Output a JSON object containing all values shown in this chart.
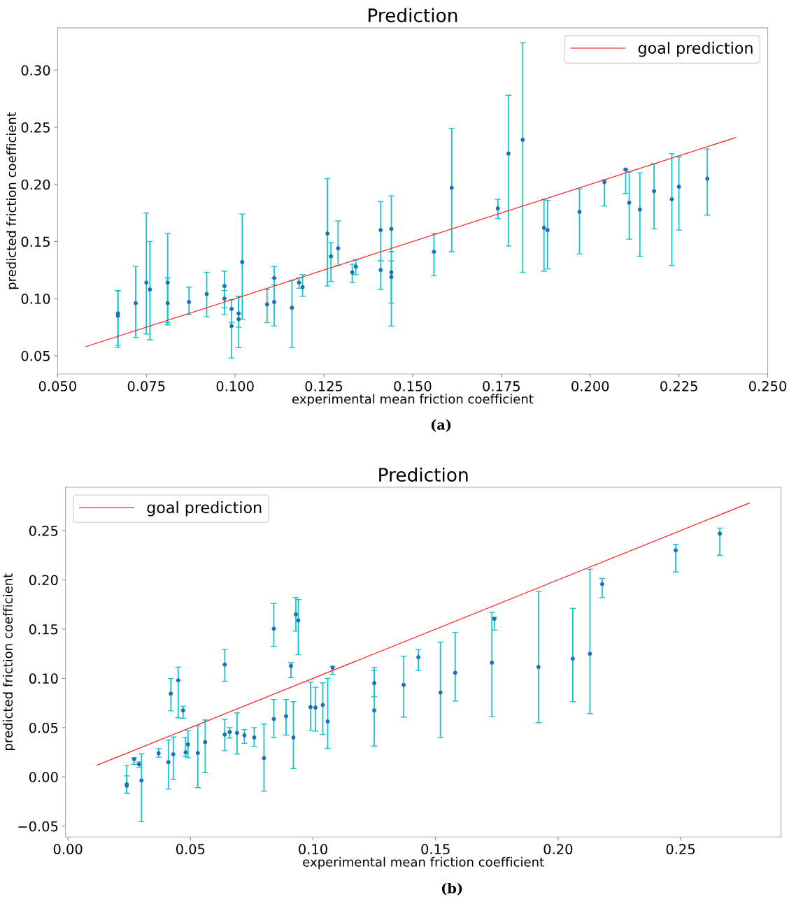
{
  "chart_data": [
    {
      "type": "scatter",
      "title": "Prediction",
      "xlabel": "experimental mean friction coefficient",
      "ylabel": "predicted friction coefficient",
      "annotations": [
        "(a)"
      ],
      "legend": "top right",
      "grid": false,
      "xlim": [
        0.05,
        0.25
      ],
      "xticks": [
        {
          "value": 0.05,
          "label": "0.050"
        },
        {
          "value": 0.075,
          "label": "0.075"
        },
        {
          "value": 0.1,
          "label": "0.100"
        },
        {
          "value": 0.125,
          "label": "0.125"
        },
        {
          "value": 0.15,
          "label": "0.150"
        },
        {
          "value": 0.175,
          "label": "0.175"
        },
        {
          "value": 0.2,
          "label": "0.200"
        },
        {
          "value": 0.225,
          "label": "0.225"
        },
        {
          "value": 0.25,
          "label": "0.250"
        }
      ],
      "ylim": [
        0.034,
        0.337
      ],
      "yticks": [
        {
          "value": 0.05,
          "label": "0.05"
        },
        {
          "value": 0.1,
          "label": "0.10"
        },
        {
          "value": 0.15,
          "label": "0.15"
        },
        {
          "value": 0.2,
          "label": "0.20"
        },
        {
          "value": 0.25,
          "label": "0.25"
        },
        {
          "value": 0.3,
          "label": "0.30"
        }
      ],
      "series": [
        {
          "type": "line",
          "name": "goal prediction",
          "color": "#ff2020",
          "x": [
            0.058,
            0.241
          ],
          "values": [
            0.058,
            0.241
          ]
        },
        {
          "color": "#1f6fb4",
          "marker": "circle",
          "x": [
            0.067,
            0.067,
            0.072,
            0.075,
            0.076,
            0.081,
            0.081,
            0.087,
            0.092,
            0.097,
            0.097,
            0.099,
            0.099,
            0.101,
            0.101,
            0.102,
            0.109,
            0.111,
            0.111,
            0.116,
            0.118,
            0.119,
            0.126,
            0.127,
            0.129,
            0.133,
            0.134,
            0.141,
            0.141,
            0.144,
            0.144,
            0.144,
            0.156,
            0.161,
            0.174,
            0.177,
            0.181,
            0.187,
            0.188,
            0.197,
            0.204,
            0.21,
            0.211,
            0.214,
            0.218,
            0.223,
            0.225,
            0.233
          ],
          "values": [
            0.087,
            0.085,
            0.096,
            0.114,
            0.108,
            0.114,
            0.096,
            0.097,
            0.104,
            0.111,
            0.1,
            0.091,
            0.076,
            0.087,
            0.082,
            0.132,
            0.095,
            0.118,
            0.097,
            0.092,
            0.114,
            0.11,
            0.157,
            0.137,
            0.144,
            0.123,
            0.128,
            0.16,
            0.125,
            0.161,
            0.123,
            0.119,
            0.141,
            0.197,
            0.179,
            0.227,
            0.239,
            0.162,
            0.16,
            0.176,
            0.202,
            0.213,
            0.184,
            0.178,
            0.194,
            0.187,
            0.198,
            0.205
          ],
          "errors": [
            [
              0.057,
              0.107
            ],
            [
              0.059,
              0.107
            ],
            [
              0.066,
              0.128
            ],
            [
              0.069,
              0.175
            ],
            [
              0.064,
              0.15
            ],
            [
              0.077,
              0.157
            ],
            [
              0.079,
              0.118
            ],
            [
              0.086,
              0.11
            ],
            [
              0.084,
              0.123
            ],
            [
              0.092,
              0.124
            ],
            [
              0.086,
              0.107
            ],
            [
              0.079,
              0.099
            ],
            [
              0.048,
              0.079
            ],
            [
              0.075,
              0.102
            ],
            [
              0.057,
              0.102
            ],
            [
              0.082,
              0.174
            ],
            [
              0.079,
              0.108
            ],
            [
              0.112,
              0.128
            ],
            [
              0.076,
              0.118
            ],
            [
              0.057,
              0.116
            ],
            [
              0.109,
              0.118
            ],
            [
              0.102,
              0.121
            ],
            [
              0.111,
              0.205
            ],
            [
              0.115,
              0.149
            ],
            [
              0.129,
              0.168
            ],
            [
              0.114,
              0.13
            ],
            [
              0.121,
              0.134
            ],
            [
              0.133,
              0.185
            ],
            [
              0.108,
              0.133
            ],
            [
              0.141,
              0.19
            ],
            [
              0.096,
              0.133
            ],
            [
              0.076,
              0.141
            ],
            [
              0.12,
              0.157
            ],
            [
              0.141,
              0.249
            ],
            [
              0.17,
              0.187
            ],
            [
              0.146,
              0.278
            ],
            [
              0.123,
              0.324
            ],
            [
              0.124,
              0.187
            ],
            [
              0.126,
              0.186
            ],
            [
              0.139,
              0.196
            ],
            [
              0.181,
              0.204
            ],
            [
              0.192,
              0.213
            ],
            [
              0.152,
              0.211
            ],
            [
              0.137,
              0.21
            ],
            [
              0.161,
              0.218
            ],
            [
              0.129,
              0.227
            ],
            [
              0.16,
              0.224
            ],
            [
              0.173,
              0.231
            ]
          ]
        }
      ]
    },
    {
      "type": "scatter",
      "title": "Prediction",
      "xlabel": "experimental mean friction coefficient",
      "ylabel": "predicted friction coefficient",
      "annotations": [
        "(b)"
      ],
      "legend": "top left",
      "grid": false,
      "xlim": [
        -0.001,
        0.291
      ],
      "xticks": [
        {
          "value": 0,
          "label": "0.00"
        },
        {
          "value": 0.05,
          "label": "0.05"
        },
        {
          "value": 0.1,
          "label": "0.10"
        },
        {
          "value": 0.15,
          "label": "0.15"
        },
        {
          "value": 0.2,
          "label": "0.20"
        },
        {
          "value": 0.25,
          "label": "0.25"
        }
      ],
      "ylim": [
        -0.061,
        0.294
      ],
      "yticks": [
        {
          "value": -0.05,
          "label": "−0.05"
        },
        {
          "value": 0,
          "label": "0.00"
        },
        {
          "value": 0.05,
          "label": "0.05"
        },
        {
          "value": 0.1,
          "label": "0.10"
        },
        {
          "value": 0.15,
          "label": "0.15"
        },
        {
          "value": 0.2,
          "label": "0.20"
        },
        {
          "value": 0.25,
          "label": "0.25"
        }
      ],
      "series": [
        {
          "type": "line",
          "name": "goal prediction",
          "color": "#ff2020",
          "x": [
            0.012,
            0.278
          ],
          "values": [
            0.012,
            0.278
          ]
        },
        {
          "color": "#1f6fb4",
          "marker": "circle",
          "x": [
            0.024,
            0.024,
            0.027,
            0.029,
            0.03,
            0.037,
            0.041,
            0.042,
            0.043,
            0.045,
            0.047,
            0.048,
            0.049,
            0.053,
            0.056,
            0.064,
            0.064,
            0.066,
            0.069,
            0.072,
            0.076,
            0.08,
            0.084,
            0.084,
            0.089,
            0.091,
            0.092,
            0.093,
            0.094,
            0.099,
            0.101,
            0.104,
            0.106,
            0.108,
            0.125,
            0.125,
            0.137,
            0.143,
            0.152,
            0.158,
            0.173,
            0.174,
            0.192,
            0.206,
            0.213,
            0.218,
            0.248,
            0.266
          ],
          "values": [
            -0.0075,
            -0.009,
            0.018,
            0.0128,
            -0.0036,
            0.024,
            0.015,
            0.0846,
            0.023,
            0.098,
            0.0675,
            0.0249,
            0.033,
            0.0242,
            0.0353,
            0.114,
            0.043,
            0.0455,
            0.0446,
            0.0422,
            0.04,
            0.019,
            0.1505,
            0.0588,
            0.0616,
            0.1126,
            0.04,
            0.165,
            0.1588,
            0.0709,
            0.0704,
            0.073,
            0.0564,
            0.111,
            0.0952,
            0.0675,
            0.0934,
            0.1215,
            0.0856,
            0.1057,
            0.116,
            0.1604,
            0.1116,
            0.12,
            0.125,
            0.1957,
            0.23,
            0.247
          ],
          "errors": [
            [
              -0.0166,
              0.0117
            ],
            [
              -0.0166,
              0.001
            ],
            [
              0.0128,
              0.0195
            ],
            [
              0.0095,
              0.0152
            ],
            [
              -0.0455,
              0.0235
            ],
            [
              0.02,
              0.0287
            ],
            [
              -0.0125,
              0.0375
            ],
            [
              0.067,
              0.0998
            ],
            [
              -0.0026,
              0.0405
            ],
            [
              0.06,
              0.1114
            ],
            [
              0.0595,
              0.0716
            ],
            [
              0.0206,
              0.04
            ],
            [
              0.0195,
              0.047
            ],
            [
              -0.011,
              0.0519
            ],
            [
              0.0043,
              0.0578
            ],
            [
              0.097,
              0.1296
            ],
            [
              0.0266,
              0.0586
            ],
            [
              0.0394,
              0.05
            ],
            [
              0.023,
              0.065
            ],
            [
              0.034,
              0.048
            ],
            [
              0.031,
              0.05
            ],
            [
              -0.0146,
              0.0536
            ],
            [
              0.1325,
              0.176
            ],
            [
              0.04,
              0.0785
            ],
            [
              0.0424,
              0.0785
            ],
            [
              0.1007,
              0.116
            ],
            [
              0.0085,
              0.0763
            ],
            [
              0.148,
              0.182
            ],
            [
              0.124,
              0.18
            ],
            [
              0.047,
              0.0962
            ],
            [
              0.0465,
              0.091
            ],
            [
              0.043,
              0.0955
            ],
            [
              0.029,
              0.1
            ],
            [
              0.104,
              0.1123
            ],
            [
              0.0813,
              0.111
            ],
            [
              0.0313,
              0.108
            ],
            [
              0.0607,
              0.1225
            ],
            [
              0.108,
              0.1294
            ],
            [
              0.04,
              0.1368
            ],
            [
              0.077,
              0.1467
            ],
            [
              0.061,
              0.167
            ],
            [
              0.149,
              0.162
            ],
            [
              0.055,
              0.188
            ],
            [
              0.0763,
              0.171
            ],
            [
              0.0643,
              0.2107
            ],
            [
              0.182,
              0.2014
            ],
            [
              0.208,
              0.236
            ],
            [
              0.225,
              0.2526
            ]
          ]
        }
      ]
    }
  ]
}
